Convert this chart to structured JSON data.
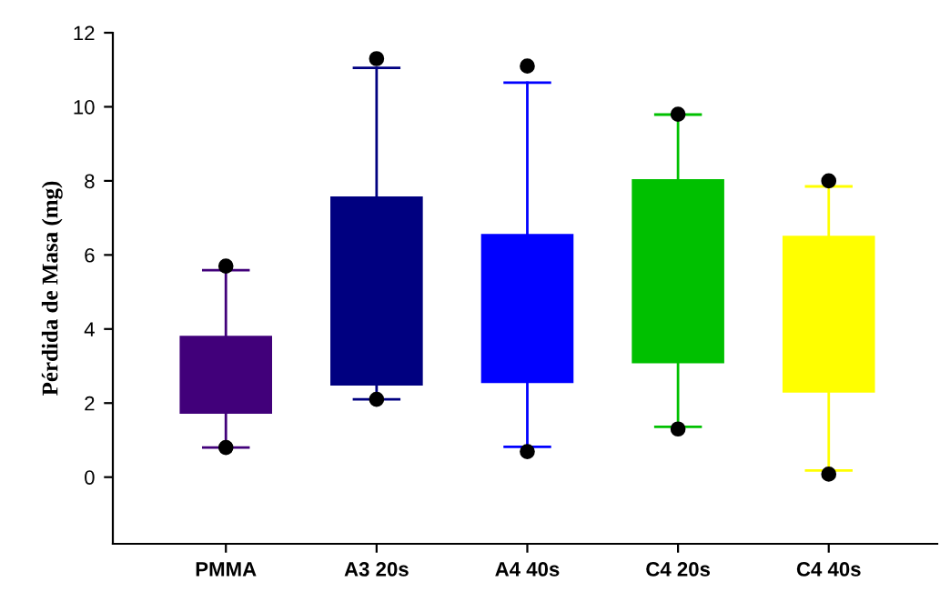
{
  "chart_data": {
    "type": "box",
    "ylabel": "Pérdida de Masa (mg)",
    "categories": [
      "PMMA",
      "A3 20s",
      "A4 40s",
      "C4 20s",
      "C4 40s"
    ],
    "colors": [
      "#41007a",
      "#000080",
      "#0000ff",
      "#00c000",
      "#ffff00"
    ],
    "boxes": [
      {
        "low": 0.8,
        "q1": 1.74,
        "q3": 3.79,
        "high": 5.59,
        "outliers": [
          0.8,
          5.7
        ]
      },
      {
        "low": 2.1,
        "q1": 2.5,
        "q3": 7.55,
        "high": 11.05,
        "outliers": [
          2.1,
          11.3
        ]
      },
      {
        "low": 0.82,
        "q1": 2.57,
        "q3": 6.54,
        "high": 10.65,
        "outliers": [
          0.69,
          11.1
        ]
      },
      {
        "low": 1.36,
        "q1": 3.1,
        "q3": 8.02,
        "high": 9.79,
        "outliers": [
          1.3,
          9.8
        ]
      },
      {
        "low": 0.18,
        "q1": 2.31,
        "q3": 6.49,
        "high": 7.85,
        "outliers": [
          0.08,
          8.0
        ]
      }
    ],
    "ylim": [
      -1.8,
      12
    ],
    "yticks": [
      0,
      2,
      4,
      6,
      8,
      10,
      12
    ],
    "grid": false,
    "legend": false
  }
}
